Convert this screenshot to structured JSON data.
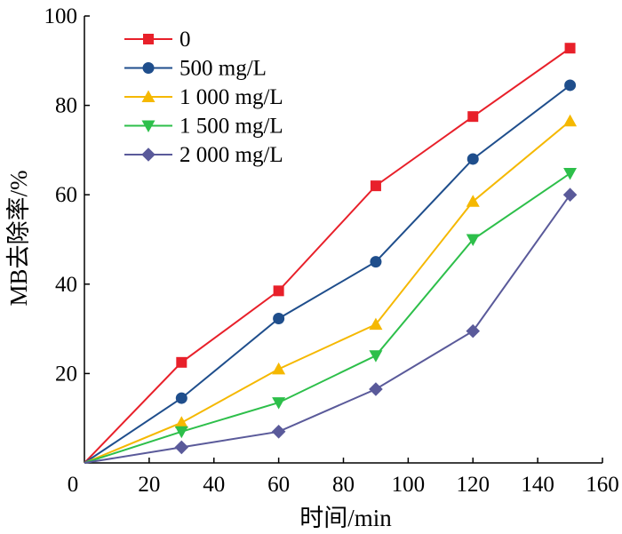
{
  "chart_data": {
    "type": "line",
    "xlabel": "时间/min",
    "ylabel": "MB去除率/%",
    "xlim": [
      0,
      160
    ],
    "ylim": [
      0,
      100
    ],
    "xticks": [
      0,
      20,
      40,
      60,
      80,
      100,
      120,
      140,
      160
    ],
    "yticks": [
      20,
      40,
      60,
      80,
      100
    ],
    "grid": false,
    "legend_position": "top-left",
    "x": [
      0,
      30,
      60,
      90,
      120,
      150
    ],
    "series": [
      {
        "name": "0",
        "color": "#e8202a",
        "marker": "square",
        "values": [
          0,
          22.5,
          38.5,
          62.0,
          77.5,
          92.8
        ]
      },
      {
        "name": "500 mg/L",
        "color": "#1f4e8c",
        "marker": "circle",
        "values": [
          0,
          14.5,
          32.3,
          45.0,
          68.0,
          84.5
        ]
      },
      {
        "name": "1 000 mg/L",
        "color": "#f5b800",
        "marker": "triangle-up",
        "values": [
          0,
          9.0,
          21.0,
          31.0,
          58.5,
          76.5
        ]
      },
      {
        "name": "1 500 mg/L",
        "color": "#2dbf4a",
        "marker": "triangle-down",
        "values": [
          0,
          7.0,
          13.5,
          24.0,
          50.0,
          64.8
        ]
      },
      {
        "name": "2 000 mg/L",
        "color": "#5a5a9a",
        "marker": "diamond",
        "values": [
          0,
          3.5,
          7.0,
          16.5,
          29.5,
          60.0
        ]
      }
    ]
  }
}
